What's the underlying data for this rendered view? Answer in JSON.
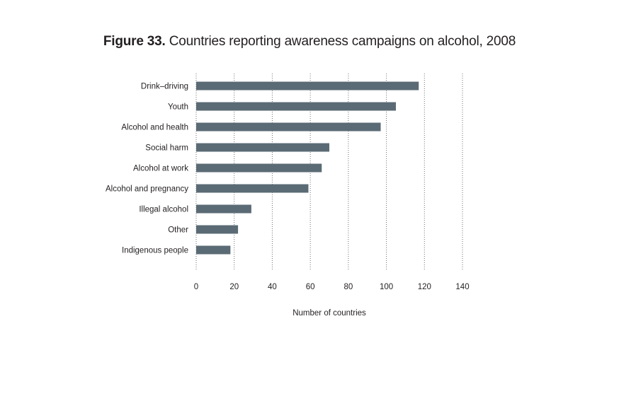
{
  "title": {
    "figure_label": "Figure 33.",
    "text": "Countries reporting awareness campaigns on alcohol, 2008"
  },
  "chart_data": {
    "type": "bar",
    "orientation": "horizontal",
    "categories": [
      "Drink–driving",
      "Youth",
      "Alcohol and health",
      "Social harm",
      "Alcohol at work",
      "Alcohol and pregnancy",
      "Illegal alcohol",
      "Other",
      "Indigenous people"
    ],
    "values": [
      117,
      105,
      97,
      70,
      66,
      59,
      29,
      22,
      18
    ],
    "xlabel": "Number of countries",
    "ylabel": "",
    "xlim": [
      0,
      140
    ],
    "xticks": [
      0,
      20,
      40,
      60,
      80,
      100,
      120,
      140
    ],
    "grid": "vertical dotted",
    "bar_color": "#5b6b75"
  }
}
